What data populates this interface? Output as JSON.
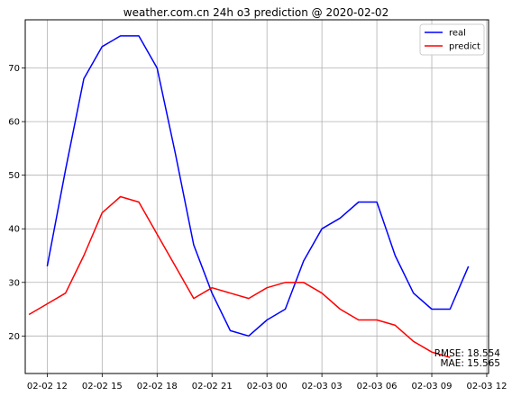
{
  "chart_data": {
    "type": "line",
    "title": "weather.com.cn 24h o3 prediction @ 2020-02-02",
    "xlabel": "",
    "ylabel": "",
    "x_tick_labels": [
      "02-02 12",
      "02-02 15",
      "02-02 18",
      "02-02 21",
      "02-03 00",
      "02-03 03",
      "02-03 06",
      "02-03 09",
      "02-03 12"
    ],
    "y_ticks": [
      20,
      30,
      40,
      50,
      60,
      70
    ],
    "xlim_hours": [
      -1.2,
      24.1
    ],
    "ylim": [
      13,
      79
    ],
    "grid": true,
    "legend_position": "top-right",
    "series": [
      {
        "name": "real",
        "color": "#0000ff",
        "x_hours": [
          0,
          1,
          2,
          3,
          4,
          5,
          6,
          7,
          8,
          9,
          10,
          11,
          12,
          13,
          14,
          15,
          16,
          17,
          18,
          19,
          20,
          21,
          22,
          23
        ],
        "values": [
          33,
          51,
          68,
          74,
          76,
          76,
          70,
          54,
          37,
          28,
          21,
          20,
          23,
          25,
          34,
          40,
          42,
          45,
          45,
          35,
          28,
          25,
          25,
          33
        ]
      },
      {
        "name": "predict",
        "color": "#ff0000",
        "x_hours": [
          -1,
          0,
          1,
          2,
          3,
          4,
          5,
          6,
          7,
          8,
          9,
          10,
          11,
          12,
          13,
          14,
          15,
          16,
          17,
          18,
          19,
          20,
          21,
          22
        ],
        "values": [
          24,
          26,
          28,
          35,
          43,
          46,
          45,
          39,
          33,
          27,
          29,
          28,
          27,
          29,
          30,
          30,
          28,
          25,
          23,
          23,
          22,
          19,
          17,
          16
        ]
      }
    ],
    "annotations": [
      "RMSE: 18.554",
      "MAE: 15.565"
    ]
  }
}
